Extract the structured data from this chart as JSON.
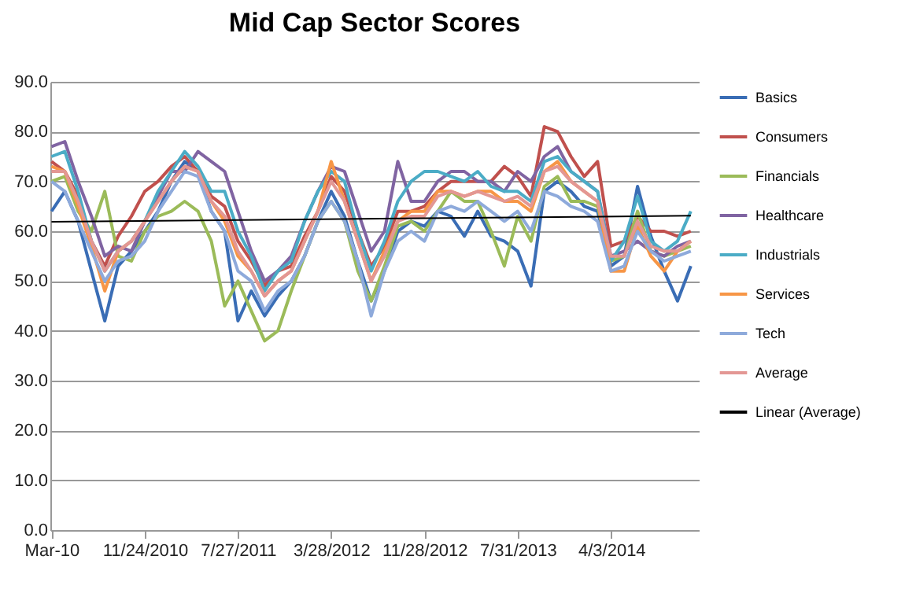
{
  "chart_data": {
    "type": "line",
    "title": "Mid Cap Sector Scores",
    "x": [
      "2010-03-24",
      "2010-04-28",
      "2010-06-02",
      "2010-07-07",
      "2010-08-11",
      "2010-09-15",
      "2010-10-20",
      "2010-11-24",
      "2010-12-29",
      "2011-02-02",
      "2011-03-09",
      "2011-04-13",
      "2011-05-18",
      "2011-06-22",
      "2011-07-27",
      "2011-08-31",
      "2011-10-05",
      "2011-11-09",
      "2011-12-14",
      "2012-01-18",
      "2012-02-22",
      "2012-03-28",
      "2012-05-02",
      "2012-06-06",
      "2012-07-11",
      "2012-08-15",
      "2012-09-19",
      "2012-10-24",
      "2012-11-28",
      "2013-01-02",
      "2013-02-06",
      "2013-03-13",
      "2013-04-17",
      "2013-05-22",
      "2013-06-26",
      "2013-07-31",
      "2013-09-04",
      "2013-10-09",
      "2013-11-13",
      "2013-12-18",
      "2014-01-22",
      "2014-02-26",
      "2014-04-02",
      "2014-05-07",
      "2014-06-11",
      "2014-07-16",
      "2014-08-20",
      "2014-09-24",
      "2014-10-29"
    ],
    "series": [
      {
        "name": "Basics",
        "color": "#3a6db5",
        "values": [
          64,
          68,
          62,
          52,
          42,
          53,
          56,
          60,
          64,
          70,
          74,
          72,
          64,
          60,
          42,
          48,
          43,
          47,
          50,
          55,
          62,
          68,
          63,
          54,
          46,
          52,
          60,
          62,
          61,
          64,
          63,
          59,
          64,
          59,
          58,
          56,
          49,
          68,
          70,
          68,
          65,
          64,
          53,
          55,
          69,
          59,
          52,
          46,
          53
        ]
      },
      {
        "name": "Consumers",
        "color": "#c0504d",
        "values": [
          74,
          72,
          67,
          58,
          53,
          59,
          63,
          68,
          70,
          73,
          75,
          72,
          67,
          65,
          58,
          54,
          49,
          52,
          53,
          59,
          64,
          71,
          68,
          60,
          53,
          57,
          64,
          64,
          65,
          68,
          70,
          70,
          70,
          70,
          73,
          71,
          67,
          81,
          80,
          75,
          71,
          74,
          57,
          58,
          63,
          60,
          60,
          59,
          60
        ]
      },
      {
        "name": "Financials",
        "color": "#9bbb59",
        "values": [
          70,
          71,
          64,
          60,
          68,
          55,
          54,
          60,
          63,
          64,
          66,
          64,
          58,
          45,
          50,
          44,
          38,
          40,
          48,
          55,
          62,
          66,
          62,
          52,
          46,
          53,
          61,
          62,
          60,
          64,
          68,
          66,
          66,
          60,
          53,
          63,
          58,
          69,
          71,
          66,
          66,
          65,
          54,
          55,
          64,
          56,
          55,
          56,
          57
        ]
      },
      {
        "name": "Healthcare",
        "color": "#8064a2",
        "values": [
          77,
          78,
          70,
          63,
          55,
          57,
          56,
          62,
          67,
          72,
          72,
          76,
          74,
          72,
          64,
          56,
          50,
          52,
          55,
          62,
          68,
          73,
          72,
          64,
          56,
          60,
          74,
          66,
          66,
          70,
          72,
          72,
          70,
          70,
          68,
          72,
          70,
          75,
          77,
          72,
          70,
          68,
          55,
          56,
          58,
          56,
          55,
          57,
          58
        ]
      },
      {
        "name": "Industrials",
        "color": "#4bacc6",
        "values": [
          75,
          76,
          68,
          58,
          52,
          56,
          58,
          62,
          68,
          72,
          76,
          73,
          68,
          68,
          60,
          55,
          48,
          52,
          54,
          62,
          68,
          72,
          70,
          60,
          52,
          58,
          66,
          70,
          72,
          72,
          71,
          70,
          72,
          69,
          68,
          68,
          66,
          74,
          75,
          72,
          70,
          68,
          54,
          58,
          67,
          58,
          56,
          58,
          64
        ]
      },
      {
        "name": "Services",
        "color": "#f79646",
        "values": [
          73,
          72,
          65,
          57,
          48,
          56,
          58,
          62,
          66,
          70,
          73,
          72,
          66,
          62,
          55,
          52,
          47,
          50,
          52,
          58,
          64,
          74,
          66,
          58,
          50,
          56,
          62,
          64,
          64,
          68,
          68,
          67,
          68,
          68,
          66,
          66,
          64,
          72,
          74,
          70,
          68,
          66,
          52,
          52,
          61,
          55,
          52,
          56,
          58
        ]
      },
      {
        "name": "Tech",
        "color": "#8eaadb",
        "values": [
          70,
          68,
          62,
          56,
          50,
          54,
          55,
          58,
          64,
          68,
          72,
          71,
          64,
          60,
          52,
          50,
          44,
          48,
          50,
          55,
          62,
          66,
          62,
          54,
          43,
          52,
          58,
          60,
          58,
          64,
          65,
          64,
          66,
          64,
          62,
          64,
          60,
          68,
          67,
          65,
          64,
          62,
          52,
          53,
          60,
          56,
          54,
          55,
          56
        ]
      },
      {
        "name": "Average",
        "color": "#e39794",
        "values": [
          72,
          72,
          66,
          58,
          52,
          56,
          58,
          62,
          66,
          70,
          73,
          72,
          66,
          63,
          56,
          52,
          47,
          50,
          52,
          58,
          64,
          70,
          66,
          58,
          50,
          55,
          62,
          63,
          63,
          67,
          68,
          67,
          68,
          67,
          66,
          67,
          65,
          72,
          73,
          70,
          68,
          66,
          55,
          55,
          62,
          57,
          56,
          56,
          58
        ]
      },
      {
        "name": "Linear (Average)",
        "color": "#000000",
        "type": "line",
        "x": [
          "2010-03-24",
          "2014-10-29"
        ],
        "values": [
          61.9,
          63.1
        ]
      }
    ],
    "xlim": [
      "2010-03-21",
      "2014-11-19"
    ],
    "xticks": [
      {
        "value": "2010-03-24",
        "label": "Mar-10"
      },
      {
        "value": "2010-11-24",
        "label": "11/24/2010"
      },
      {
        "value": "2011-07-27",
        "label": "7/27/2011"
      },
      {
        "value": "2012-03-28",
        "label": "3/28/2012"
      },
      {
        "value": "2012-11-28",
        "label": "11/28/2012"
      },
      {
        "value": "2013-07-31",
        "label": "7/31/2013"
      },
      {
        "value": "2014-04-03",
        "label": "4/3/2014"
      }
    ],
    "ylim": [
      0,
      90
    ],
    "yticks": [
      {
        "value": 0,
        "label": "0.0"
      },
      {
        "value": 10,
        "label": "10.0"
      },
      {
        "value": 20,
        "label": "20.0"
      },
      {
        "value": 30,
        "label": "30.0"
      },
      {
        "value": 40,
        "label": "40.0"
      },
      {
        "value": 50,
        "label": "50.0"
      },
      {
        "value": 60,
        "label": "60.0"
      },
      {
        "value": 70,
        "label": "70.0"
      },
      {
        "value": 80,
        "label": "80.0"
      },
      {
        "value": 90,
        "label": "90.0"
      }
    ],
    "grid": "y",
    "legend": "right"
  }
}
